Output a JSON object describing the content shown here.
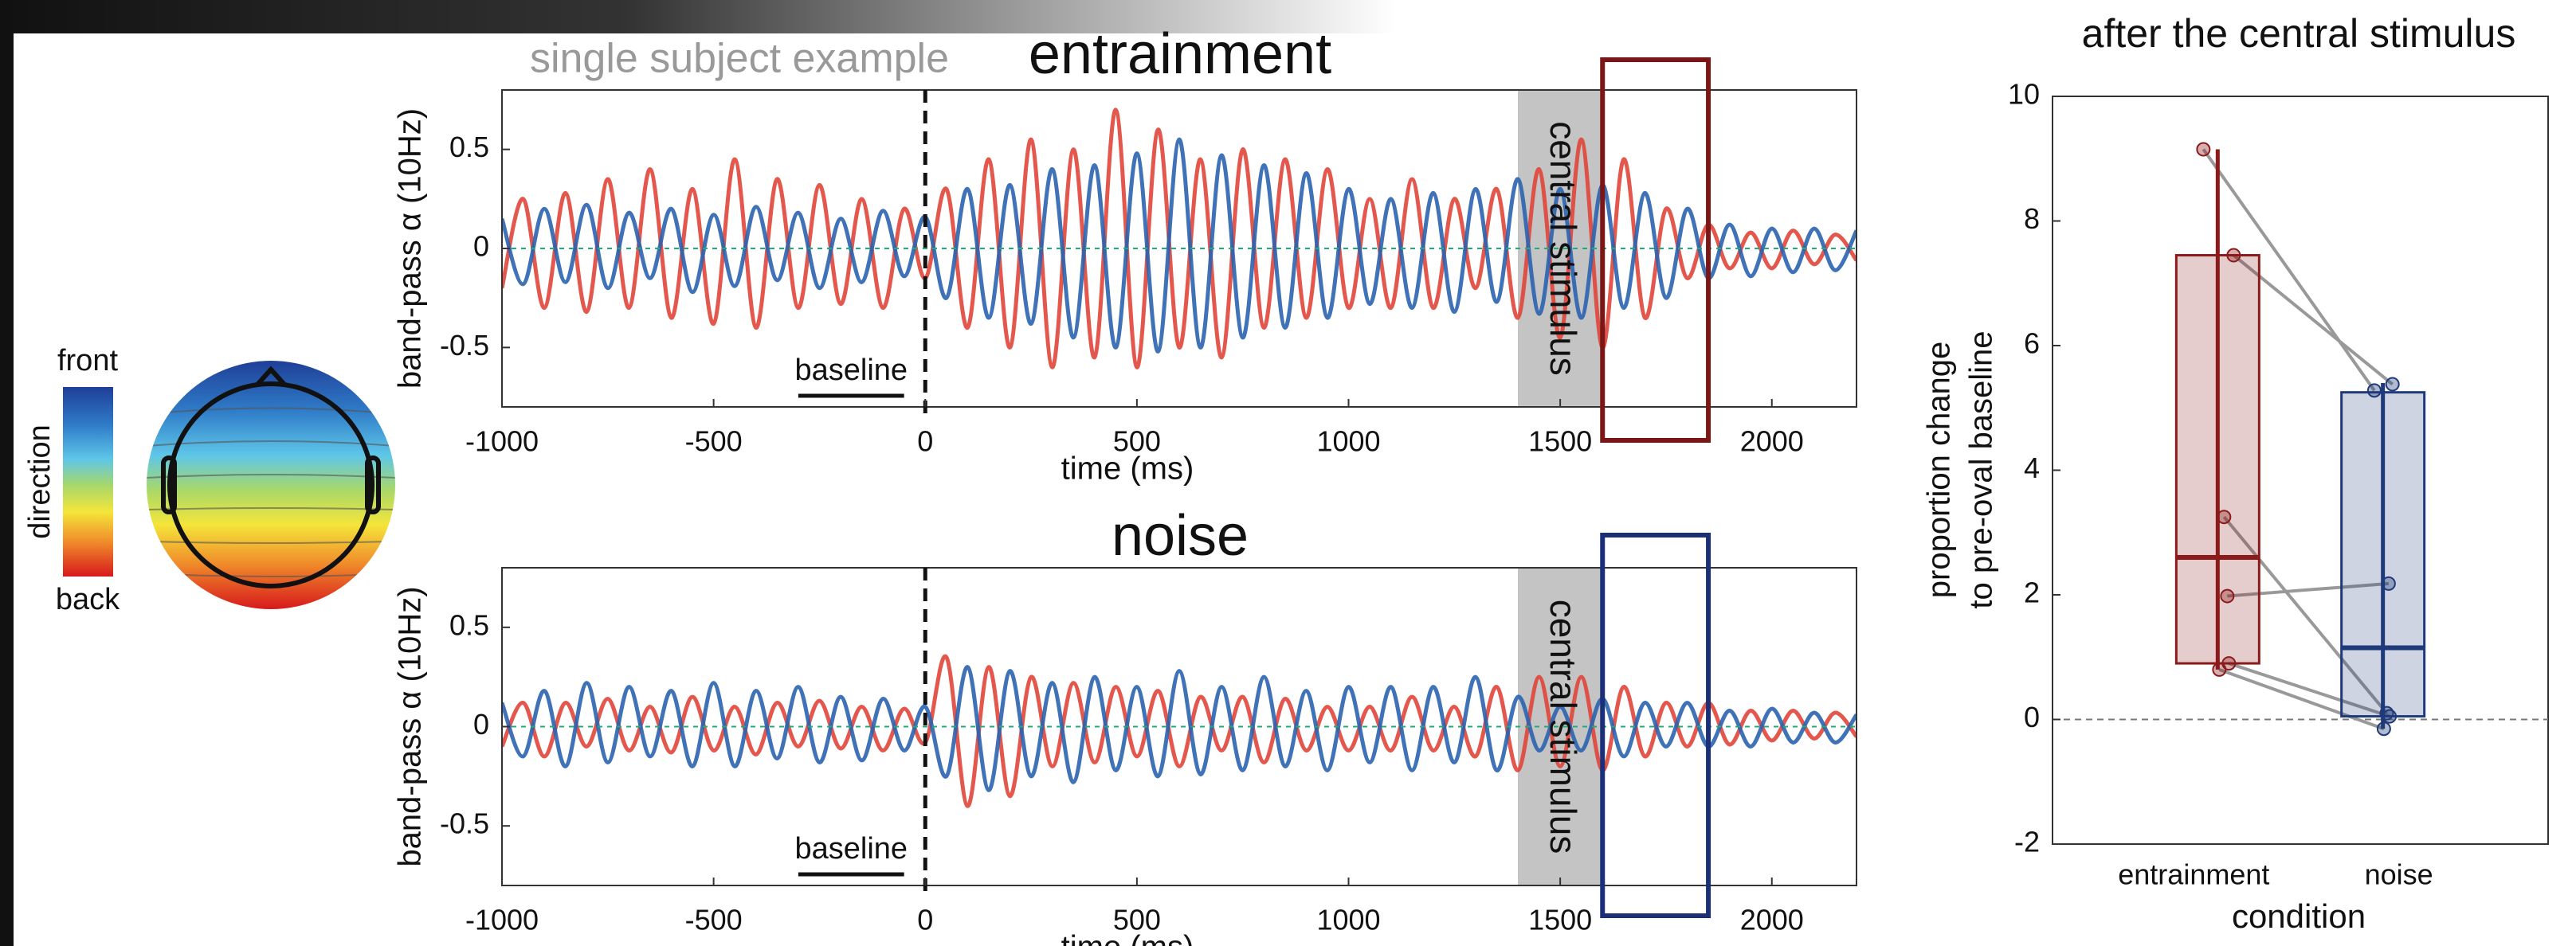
{
  "chart_data": [
    {
      "type": "wave",
      "title": "entrainment",
      "subtitle": "single subject example",
      "xlabel": "time (ms)",
      "ylabel": "band-pass α (10Hz)",
      "colorbar_label": "direction",
      "xlim": [
        -1000,
        2200
      ],
      "ylim": [
        -0.8,
        0.8
      ],
      "xticks": [
        -1000,
        -500,
        0,
        500,
        1000,
        1500,
        2000
      ],
      "yticks": [
        -0.5,
        0,
        0.5
      ],
      "event": 0,
      "shade": [
        1400,
        1600
      ],
      "shade_label": "central stimulus",
      "window": [
        1600,
        1850
      ],
      "window_color": "#7a1616",
      "baseline": [
        -300,
        -50
      ],
      "baseline_label": "baseline",
      "x": [
        -1000,
        -950,
        -900,
        -850,
        -800,
        -750,
        -700,
        -650,
        -600,
        -550,
        -500,
        -450,
        -400,
        -350,
        -300,
        -250,
        -200,
        -150,
        -100,
        -50,
        0,
        50,
        100,
        150,
        200,
        250,
        300,
        350,
        400,
        450,
        500,
        550,
        600,
        650,
        700,
        750,
        800,
        850,
        900,
        950,
        1000,
        1050,
        1100,
        1150,
        1200,
        1250,
        1300,
        1350,
        1400,
        1450,
        1500,
        1550,
        1600,
        1650,
        1700,
        1750,
        1800,
        1850,
        1900,
        1950,
        2000,
        2050,
        2100,
        2150,
        2200
      ],
      "series": [
        {
          "name": "back",
          "color": "#e0453a",
          "values": [
            -0.2,
            0.25,
            -0.3,
            0.28,
            -0.32,
            0.35,
            -0.3,
            0.4,
            -0.35,
            0.3,
            -0.38,
            0.45,
            -0.4,
            0.35,
            -0.3,
            0.32,
            -0.28,
            0.25,
            -0.3,
            0.2,
            -0.15,
            0.3,
            -0.4,
            0.45,
            -0.5,
            0.55,
            -0.6,
            0.5,
            -0.55,
            0.7,
            -0.6,
            0.6,
            -0.5,
            0.45,
            -0.55,
            0.5,
            -0.4,
            0.45,
            -0.35,
            0.4,
            -0.3,
            0.25,
            -0.3,
            0.35,
            -0.3,
            0.25,
            -0.2,
            0.3,
            -0.35,
            0.4,
            -0.45,
            0.55,
            -0.5,
            0.45,
            -0.35,
            0.2,
            -0.15,
            0.12,
            -0.1,
            0.08,
            -0.1,
            0.09,
            -0.08,
            0.07,
            -0.06
          ]
        },
        {
          "name": "front",
          "color": "#2b63b0",
          "values": [
            0.15,
            -0.18,
            0.2,
            -0.17,
            0.22,
            -0.2,
            0.18,
            -0.15,
            0.2,
            -0.22,
            0.17,
            -0.19,
            0.21,
            -0.16,
            0.18,
            -0.2,
            0.15,
            -0.17,
            0.19,
            -0.14,
            0.16,
            -0.25,
            0.3,
            -0.35,
            0.32,
            -0.38,
            0.4,
            -0.45,
            0.42,
            -0.5,
            0.48,
            -0.52,
            0.55,
            -0.5,
            0.47,
            -0.45,
            0.42,
            -0.4,
            0.38,
            -0.35,
            0.3,
            -0.28,
            0.25,
            -0.3,
            0.28,
            -0.32,
            0.3,
            -0.27,
            0.35,
            -0.33,
            0.3,
            -0.35,
            0.32,
            -0.3,
            0.28,
            -0.25,
            0.2,
            -0.15,
            0.12,
            -0.14,
            0.1,
            -0.12,
            0.1,
            -0.11,
            0.09
          ]
        }
      ]
    },
    {
      "type": "wave",
      "title": "noise",
      "xlabel": "time (ms)",
      "ylabel": "band-pass α (10Hz)",
      "xlim": [
        -1000,
        2200
      ],
      "ylim": [
        -0.8,
        0.8
      ],
      "xticks": [
        -1000,
        -500,
        0,
        500,
        1000,
        1500,
        2000
      ],
      "yticks": [
        -0.5,
        0,
        0.5
      ],
      "event": 0,
      "shade": [
        1400,
        1600
      ],
      "shade_label": "central stimulus",
      "window": [
        1600,
        1850
      ],
      "window_color": "#1a2f78",
      "baseline": [
        -300,
        -50
      ],
      "baseline_label": "baseline",
      "x": [
        -1000,
        -950,
        -900,
        -850,
        -800,
        -750,
        -700,
        -650,
        -600,
        -550,
        -500,
        -450,
        -400,
        -350,
        -300,
        -250,
        -200,
        -150,
        -100,
        -50,
        0,
        50,
        100,
        150,
        200,
        250,
        300,
        350,
        400,
        450,
        500,
        550,
        600,
        650,
        700,
        750,
        800,
        850,
        900,
        950,
        1000,
        1050,
        1100,
        1150,
        1200,
        1250,
        1300,
        1350,
        1400,
        1450,
        1500,
        1550,
        1600,
        1650,
        1700,
        1750,
        1800,
        1850,
        1900,
        1950,
        2000,
        2050,
        2100,
        2150,
        2200
      ],
      "series": [
        {
          "name": "back",
          "color": "#e0453a",
          "values": [
            -0.1,
            0.12,
            -0.15,
            0.12,
            -0.1,
            0.14,
            -0.12,
            0.1,
            -0.13,
            0.15,
            -0.12,
            0.1,
            -0.14,
            0.12,
            -0.1,
            0.13,
            -0.11,
            0.1,
            -0.12,
            0.09,
            -0.08,
            0.35,
            -0.4,
            0.3,
            -0.35,
            0.25,
            -0.2,
            0.22,
            -0.18,
            0.2,
            -0.15,
            0.18,
            -0.2,
            0.15,
            -0.12,
            0.15,
            -0.18,
            0.14,
            -0.12,
            0.1,
            -0.12,
            0.1,
            -0.12,
            0.15,
            -0.12,
            0.1,
            -0.15,
            0.2,
            -0.22,
            0.25,
            -0.2,
            0.25,
            -0.22,
            0.2,
            -0.15,
            0.12,
            -0.1,
            0.12,
            -0.09,
            0.08,
            -0.07,
            0.08,
            -0.06,
            0.07,
            -0.05
          ]
        },
        {
          "name": "front",
          "color": "#2b63b0",
          "values": [
            0.12,
            -0.15,
            0.18,
            -0.2,
            0.22,
            -0.18,
            0.2,
            -0.15,
            0.18,
            -0.2,
            0.22,
            -0.2,
            0.18,
            -0.16,
            0.2,
            -0.18,
            0.15,
            -0.17,
            0.14,
            -0.12,
            0.1,
            -0.25,
            0.3,
            -0.32,
            0.28,
            -0.25,
            0.22,
            -0.28,
            0.25,
            -0.22,
            0.2,
            -0.25,
            0.28,
            -0.24,
            0.2,
            -0.22,
            0.25,
            -0.2,
            0.18,
            -0.22,
            0.2,
            -0.18,
            0.2,
            -0.22,
            0.2,
            -0.18,
            0.25,
            -0.22,
            0.15,
            -0.12,
            0.1,
            -0.12,
            0.14,
            -0.15,
            0.12,
            -0.1,
            0.12,
            -0.1,
            0.08,
            -0.1,
            0.09,
            -0.08,
            0.07,
            -0.08,
            0.06
          ]
        }
      ]
    },
    {
      "type": "box",
      "title": "after the central stimulus",
      "xlabel": "condition",
      "ylabel": [
        "proportion change",
        "to pre-oval baseline"
      ],
      "ylim": [
        -2,
        10
      ],
      "yticks": [
        -2,
        0,
        2,
        4,
        6,
        8,
        10
      ],
      "reference": 0,
      "categories": [
        "entrainment",
        "noise"
      ],
      "series": [
        {
          "color": "#8b1a1a",
          "q1": 0.9,
          "median": 2.6,
          "q3": 7.45,
          "whisker_low": 0.8,
          "whisker_high": 9.15,
          "points": [
            9.15,
            7.45,
            3.25,
            1.98,
            0.9,
            0.8
          ]
        },
        {
          "color": "#1f3a7a",
          "q1": 0.05,
          "median": 1.15,
          "q3": 5.25,
          "whisker_low": -0.15,
          "whisker_high": 5.4,
          "points": [
            5.28,
            5.38,
            0.1,
            2.18,
            0.05,
            -0.15
          ]
        }
      ]
    }
  ]
}
